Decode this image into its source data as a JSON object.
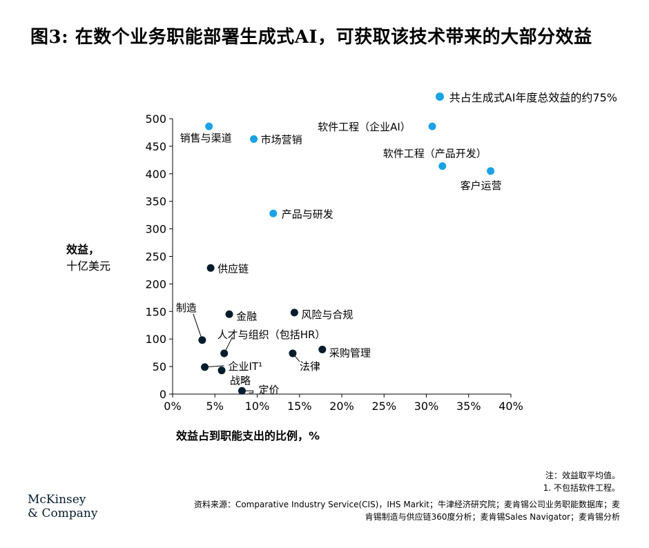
{
  "title": "图3: 在数个业务职能部署生成式AI，可获取该技术带来的大部分效益",
  "legend": {
    "label": "共占生成式AI年度总效益的约75%",
    "color": "#1aa1e6"
  },
  "colors": {
    "highlight": "#1aa1e6",
    "other": "#051c2c"
  },
  "ylabel_line1": "效益，",
  "ylabel_line2": "十亿美元",
  "xlabel": "效益占到职能支出的比例，%",
  "notes": [
    "注：效益取平均值。",
    "1. 不包括软件工程。"
  ],
  "source": "资料来源：Comparative Industry Service(CIS)，IHS Markit；牛津经济研究院；麦肯锡公司业务职能数据库；麦肯锡制造与供应链360度分析；麦肯锡Sales Navigator；麦肯锡分析",
  "logo": {
    "line1": "McKinsey",
    "line2": "& Company"
  },
  "chart_data": {
    "type": "scatter",
    "xlim": [
      0,
      40
    ],
    "ylim": [
      0,
      500
    ],
    "xticks": [
      0,
      5,
      10,
      15,
      20,
      25,
      30,
      35,
      40
    ],
    "xtick_labels": [
      "0%",
      "5%",
      "10%",
      "15%",
      "20%",
      "25%",
      "30%",
      "35%",
      "40%"
    ],
    "yticks": [
      0,
      50,
      100,
      150,
      200,
      250,
      300,
      350,
      400,
      450,
      500
    ],
    "ytick_labels": [
      "0",
      "50",
      "100",
      "150",
      "200",
      "250",
      "300",
      "350",
      "400",
      "450",
      "500"
    ],
    "grid": false,
    "points": [
      {
        "label": "销售与渠道",
        "x": 4.3,
        "y": 486,
        "highlight": true
      },
      {
        "label": "市场营销",
        "x": 9.6,
        "y": 463,
        "highlight": true
      },
      {
        "label": "软件工程（企业AI）",
        "x": 30.7,
        "y": 486,
        "highlight": true
      },
      {
        "label": "软件工程（产品开发）",
        "x": 31.9,
        "y": 414,
        "highlight": true
      },
      {
        "label": "客户运营",
        "x": 37.6,
        "y": 405,
        "highlight": true
      },
      {
        "label": "产品与研发",
        "x": 11.9,
        "y": 328,
        "highlight": true
      },
      {
        "label": "供应链",
        "x": 4.5,
        "y": 229,
        "highlight": false
      },
      {
        "label": "金融",
        "x": 6.7,
        "y": 145,
        "highlight": false
      },
      {
        "label": "风险与合规",
        "x": 14.4,
        "y": 148,
        "highlight": false
      },
      {
        "label": "制造",
        "x": 3.5,
        "y": 98,
        "highlight": false
      },
      {
        "label": "人才与组织（包括HR）",
        "x": 6.1,
        "y": 74,
        "highlight": false
      },
      {
        "label": "法律",
        "x": 14.2,
        "y": 74,
        "highlight": false
      },
      {
        "label": "采购管理",
        "x": 17.7,
        "y": 81,
        "highlight": false
      },
      {
        "label": "企业IT¹",
        "x": 3.8,
        "y": 49,
        "highlight": false
      },
      {
        "label": "战略",
        "x": 5.8,
        "y": 43,
        "highlight": false
      },
      {
        "label": "定价",
        "x": 8.2,
        "y": 6,
        "highlight": false
      }
    ]
  }
}
